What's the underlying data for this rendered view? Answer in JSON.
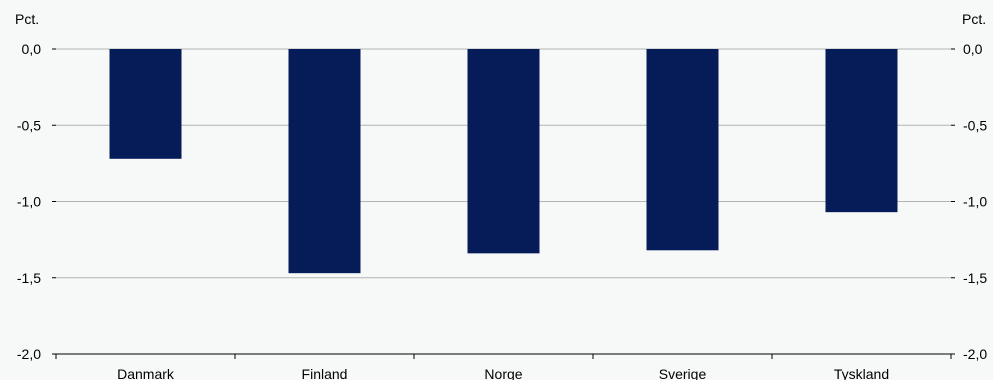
{
  "chart_data": {
    "type": "bar",
    "categories": [
      "Danmark",
      "Finland",
      "Norge",
      "Sverige",
      "Tyskland"
    ],
    "values": [
      -0.72,
      -1.47,
      -1.34,
      -1.32,
      -1.07
    ],
    "unit_left": "Pct.",
    "unit_right": "Pct.",
    "ylim": [
      -2.0,
      0.0
    ],
    "yticks": [
      0.0,
      -0.5,
      -1.0,
      -1.5,
      -2.0
    ],
    "ytick_labels": [
      "0,0",
      "-0,5",
      "-1,0",
      "-1,5",
      "-2,0"
    ],
    "grid": true,
    "bar_color": "#051c58",
    "grid_color": "#b3b3b3"
  }
}
